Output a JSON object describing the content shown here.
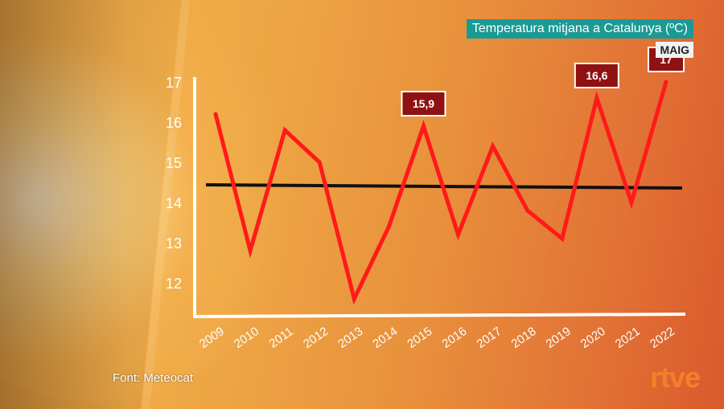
{
  "title": "Temperatura mitjana a Catalunya (ºC)",
  "subtitle": "MAIG",
  "source": "Font: Meteocat",
  "logo": "rtve",
  "colors": {
    "series": "#ff1a1a",
    "average": "#111111",
    "title_bg": "#1b9a95",
    "label_bg": "#8e1212"
  },
  "chart_data": {
    "type": "line",
    "x": [
      "2009",
      "2010",
      "2011",
      "2012",
      "2013",
      "2014",
      "2015",
      "2016",
      "2017",
      "2018",
      "2019",
      "2020",
      "2021",
      "2022"
    ],
    "series": [
      {
        "values": [
          16.2,
          12.8,
          15.8,
          15.0,
          11.6,
          13.4,
          15.9,
          13.2,
          15.4,
          13.8,
          13.1,
          16.6,
          14.0,
          17.0
        ]
      }
    ],
    "reference_line": 14.4,
    "data_labels": [
      {
        "x": "2015",
        "text": "15,9"
      },
      {
        "x": "2020",
        "text": "16,6"
      },
      {
        "x": "2022",
        "text": "17"
      }
    ],
    "yticks": [
      "12",
      "13",
      "14",
      "15",
      "16",
      "17"
    ],
    "ylim": [
      11,
      17
    ],
    "grid": false
  }
}
